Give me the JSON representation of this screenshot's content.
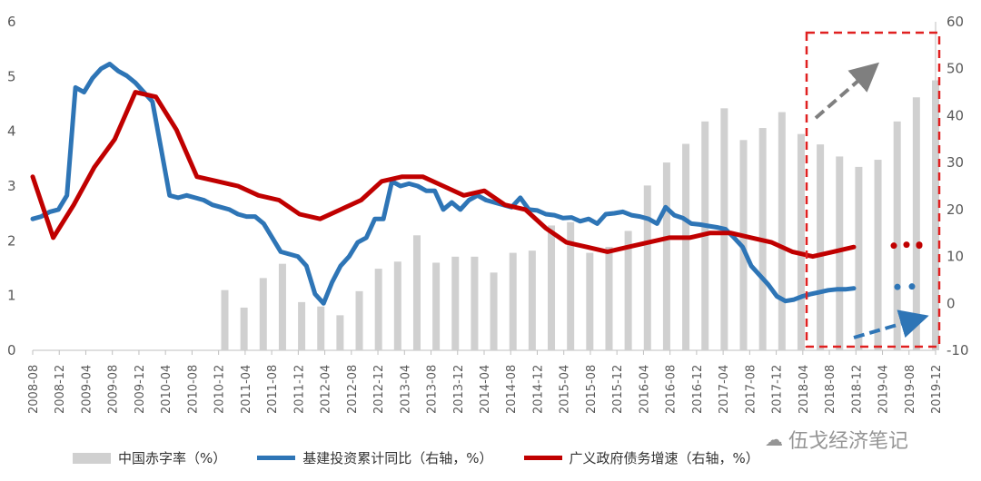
{
  "chart_data": {
    "type": "bar+line",
    "x": [
      "2008-08",
      "2008-12",
      "2009-04",
      "2009-08",
      "2009-12",
      "2010-04",
      "2010-08",
      "2010-12",
      "2011-04",
      "2011-08",
      "2011-12",
      "2012-04",
      "2012-08",
      "2012-12",
      "2013-04",
      "2013-08",
      "2013-12",
      "2014-04",
      "2014-08",
      "2014-12",
      "2015-04",
      "2015-08",
      "2015-12",
      "2016-04",
      "2016-08",
      "2016-12",
      "2017-04",
      "2017-08",
      "2017-12",
      "2018-04",
      "2018-08",
      "2018-12",
      "2019-04",
      "2019-08",
      "2019-12"
    ],
    "left_axis": {
      "ylim": [
        0,
        6
      ],
      "ticks": [
        "0",
        "1",
        "2",
        "3",
        "4",
        "5",
        "6"
      ]
    },
    "right_axis": {
      "ylim": [
        -10,
        60
      ],
      "ticks": [
        "-10",
        "0",
        "10",
        "20",
        "30",
        "40",
        "50",
        "60"
      ]
    },
    "bar_series": {
      "name": "中国赤字率（%）",
      "color": "#d0d0d0",
      "values": [
        null,
        null,
        null,
        null,
        null,
        null,
        null,
        null,
        null,
        null,
        1.1,
        0.78,
        1.32,
        1.58,
        0.88,
        0.8,
        0.64,
        1.08,
        1.49,
        1.62,
        2.1,
        1.6,
        1.71,
        1.71,
        1.42,
        1.78,
        1.82,
        2.28,
        2.34,
        1.78,
        1.89,
        2.18,
        3.01,
        3.43,
        3.77,
        4.18,
        4.42,
        3.84,
        4.06,
        4.35,
        3.95,
        3.76,
        3.54,
        3.35,
        3.48,
        4.18,
        4.62,
        4.93
      ]
    },
    "line_series": [
      {
        "name": "基建投资累计同比（右轴，%）",
        "color": "#2e75b6",
        "start": 0,
        "values": [
          18,
          18.5,
          19.5,
          20,
          23,
          46,
          45,
          48,
          50,
          51,
          49.5,
          48.5,
          47,
          45,
          43,
          33,
          23,
          22.5,
          23,
          22.5,
          22,
          21,
          20.5,
          20,
          19,
          18.5,
          18.5,
          17,
          14,
          11,
          10.5,
          10,
          8,
          2,
          0,
          4.5,
          8,
          10,
          13,
          14,
          18,
          18,
          26,
          25,
          25.5,
          25,
          24,
          24,
          20,
          21.5,
          20,
          22,
          23,
          22,
          21.5,
          21,
          20.5,
          22.5,
          20,
          19.8,
          19,
          18.8,
          18.2,
          18.3,
          17.5,
          18,
          17,
          19,
          19.2,
          19.5,
          18.8,
          18.5,
          18,
          17,
          20.5,
          18.8,
          18.2,
          17,
          16.8,
          16.5,
          16.2,
          15.8,
          14,
          12,
          8,
          6,
          4,
          1.5,
          0.5,
          0.8,
          1.5,
          2,
          2.4,
          2.8,
          3,
          3,
          3.2
        ]
      },
      {
        "name": "广义政府债务增速（右轴，%）",
        "color": "#c00000",
        "values": [
          27,
          14,
          21,
          29,
          35,
          45,
          44,
          37,
          27,
          26,
          25,
          23,
          22,
          19,
          18,
          20,
          22,
          26,
          27,
          27,
          25,
          23,
          24,
          21,
          20,
          16,
          13,
          12,
          11,
          12,
          13,
          14,
          14,
          15,
          15,
          14,
          13,
          11,
          10,
          11,
          12
        ]
      }
    ],
    "projection_dots": {
      "blue_values": [
        3.5,
        3.6
      ],
      "red_values": [
        12.3,
        12.5
      ]
    },
    "legend_position": "bottom",
    "grid": false
  },
  "legend": {
    "bar": "中国赤字率（%）",
    "blue": "基建投资累计同比（右轴，%）",
    "red": "广义政府债务增速（右轴，%）"
  },
  "watermark": {
    "text": "伍戈经济笔记"
  },
  "highlight_box": {
    "color": "#e02020"
  },
  "arrows": {
    "gray": "#7f7f7f",
    "blue": "#2e75b6"
  }
}
